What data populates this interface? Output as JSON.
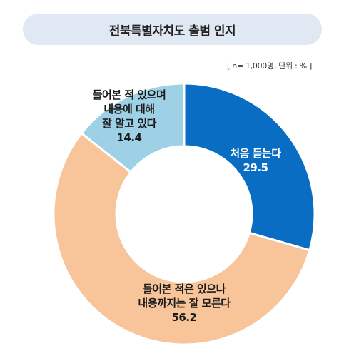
{
  "title": "전북특별자치도 출범 인지",
  "note": "[ n= 1,000명, 단위 : % ]",
  "colors": {
    "title_bg": "#dfe8f3",
    "slice1": "#0a6dc4",
    "slice2": "#f8c49a",
    "slice3": "#9ed1e6"
  },
  "chart_data": {
    "type": "donut",
    "slices": [
      {
        "label_lines": [
          "처음 듣는다"
        ],
        "value": 29.5,
        "value_text": "29.5",
        "color": "#0a6dc4",
        "text_color": "#ffffff"
      },
      {
        "label_lines": [
          "들어본 적은 있으나",
          "내용까지는 잘 모른다"
        ],
        "value": 56.2,
        "value_text": "56.2",
        "color": "#f8c49a",
        "text_color": "#1a1a1a"
      },
      {
        "label_lines": [
          "들어본 적 있으며",
          "내용에 대해",
          "잘 알고 있다"
        ],
        "value": 14.4,
        "value_text": "14.4",
        "color": "#9ed1e6",
        "text_color": "#1a1a1a"
      }
    ]
  }
}
